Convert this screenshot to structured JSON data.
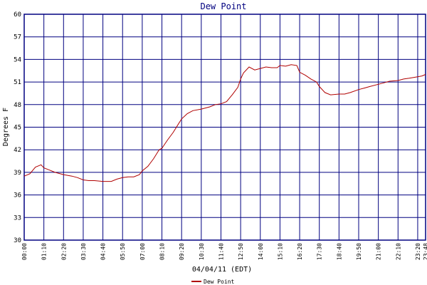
{
  "chart_data": {
    "type": "line",
    "title": "Dew Point",
    "xlabel": "04/04/11 (EDT)",
    "ylabel": "Degrees F",
    "x_ticks": [
      "00:00",
      "01:10",
      "02:20",
      "03:30",
      "04:40",
      "05:50",
      "07:00",
      "08:10",
      "09:20",
      "10:30",
      "11:40",
      "12:50",
      "14:00",
      "15:10",
      "16:20",
      "17:30",
      "18:40",
      "19:50",
      "21:00",
      "22:10",
      "23:20",
      "23:48"
    ],
    "y_ticks": [
      "30",
      "33",
      "36",
      "39",
      "42",
      "45",
      "48",
      "51",
      "54",
      "57",
      "60"
    ],
    "xlim": [
      "00:00",
      "23:48"
    ],
    "ylim": [
      30,
      60
    ],
    "grid": true,
    "legend_position": "bottom-center",
    "series": [
      {
        "name": "Dew Point",
        "color": "#b00000",
        "x": [
          "00:00",
          "00:20",
          "00:40",
          "01:00",
          "01:10",
          "01:30",
          "01:50",
          "02:20",
          "02:50",
          "03:10",
          "03:30",
          "03:50",
          "04:10",
          "04:40",
          "05:10",
          "05:30",
          "05:50",
          "06:10",
          "06:30",
          "06:50",
          "07:00",
          "07:20",
          "07:40",
          "08:00",
          "08:10",
          "08:30",
          "08:50",
          "09:10",
          "09:20",
          "09:40",
          "10:00",
          "10:30",
          "11:00",
          "11:20",
          "11:40",
          "12:00",
          "12:20",
          "12:40",
          "12:50",
          "13:00",
          "13:20",
          "13:40",
          "14:00",
          "14:20",
          "14:40",
          "15:00",
          "15:10",
          "15:30",
          "15:50",
          "16:10",
          "16:20",
          "16:40",
          "17:00",
          "17:20",
          "17:30",
          "17:50",
          "18:10",
          "18:40",
          "19:00",
          "19:20",
          "19:50",
          "20:10",
          "20:30",
          "21:00",
          "21:20",
          "21:40",
          "22:10",
          "22:30",
          "22:50",
          "23:20",
          "23:35",
          "23:48"
        ],
        "values": [
          38.5,
          38.8,
          39.7,
          40.0,
          39.6,
          39.3,
          39.0,
          38.7,
          38.5,
          38.3,
          38.0,
          37.9,
          37.9,
          37.8,
          37.8,
          38.1,
          38.3,
          38.4,
          38.4,
          38.7,
          39.2,
          39.8,
          40.8,
          42.0,
          42.2,
          43.3,
          44.3,
          45.5,
          46.1,
          46.8,
          47.2,
          47.4,
          47.7,
          48.0,
          48.1,
          48.4,
          49.3,
          50.3,
          51.4,
          52.2,
          53.0,
          52.6,
          52.8,
          53.0,
          52.9,
          52.9,
          53.2,
          53.1,
          53.3,
          53.2,
          52.3,
          51.9,
          51.4,
          51.0,
          50.4,
          49.6,
          49.3,
          49.4,
          49.4,
          49.6,
          50.0,
          50.2,
          50.4,
          50.7,
          50.9,
          51.1,
          51.2,
          51.4,
          51.5,
          51.7,
          51.8,
          52.0
        ]
      }
    ]
  }
}
